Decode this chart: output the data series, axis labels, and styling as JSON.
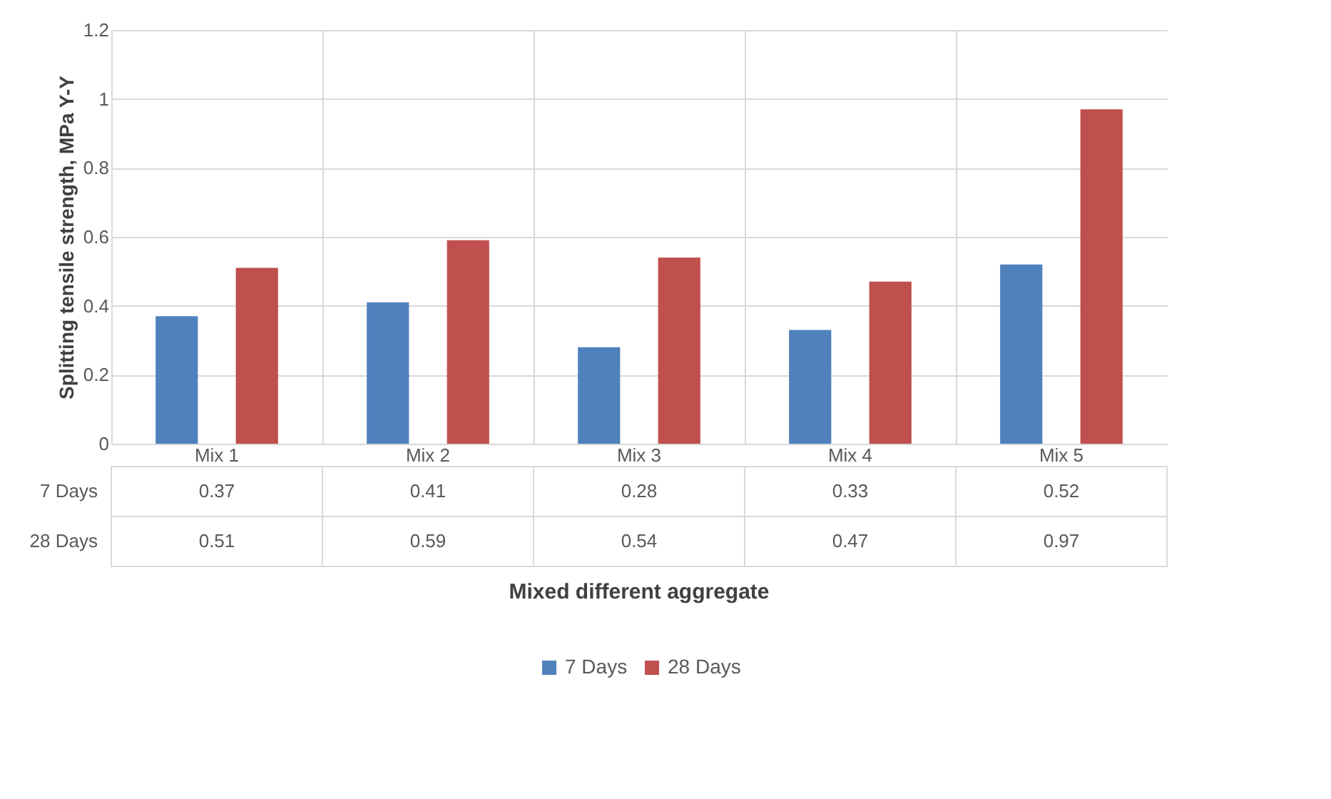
{
  "chart_data": {
    "type": "bar",
    "ylabel": "Splitting tensile strength, MPa Y-Y",
    "annotations": [
      "Mixed different aggregate"
    ],
    "categories": [
      "Mix 1",
      "Mix 2",
      "Mix 3",
      "Mix 4",
      "Mix 5"
    ],
    "series": [
      {
        "name": "7 Days",
        "color": "#4f81bd",
        "values": [
          0.37,
          0.41,
          0.28,
          0.33,
          0.52
        ]
      },
      {
        "name": "28 Days",
        "color": "#c0504d",
        "values": [
          0.51,
          0.59,
          0.54,
          0.47,
          0.97
        ]
      }
    ],
    "ylim": [
      0,
      1.2
    ],
    "yticks": [
      0,
      0.2,
      0.4,
      0.6,
      0.8,
      1,
      1.2
    ],
    "grid": true,
    "legend": "bottom",
    "data_labels": true
  }
}
